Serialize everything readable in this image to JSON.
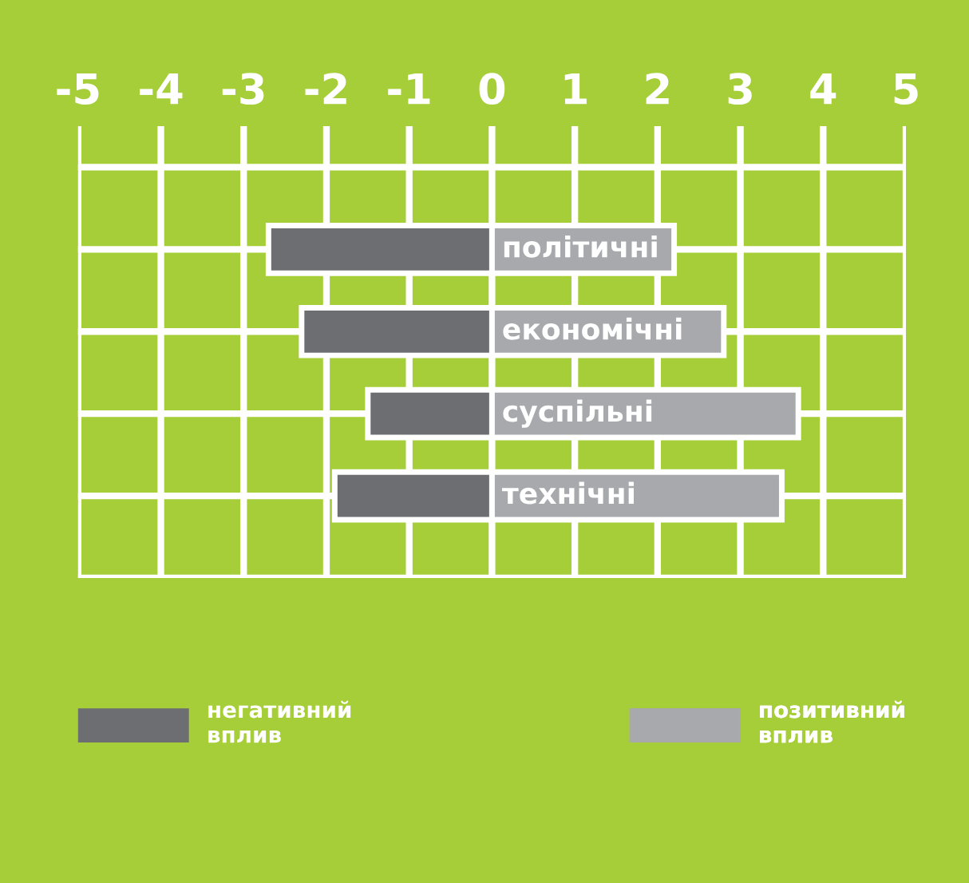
{
  "chart_data": {
    "type": "bar",
    "orientation": "horizontal",
    "stacked": true,
    "categories": [
      "політичні",
      "економічні",
      "суспільні",
      "технічні"
    ],
    "series": [
      {
        "name": "негативний\nвплив",
        "color": "#6d6e71",
        "values": [
          -2.7,
          -2.3,
          -1.5,
          -1.9
        ]
      },
      {
        "name": "позитивний\nвплив",
        "color": "#a7a9ac",
        "values": [
          2.2,
          2.8,
          3.7,
          3.5
        ]
      }
    ],
    "xlim": [
      -5,
      5
    ],
    "xticks": [
      -5,
      -4,
      -3,
      -2,
      -1,
      0,
      1,
      2,
      3,
      4,
      5
    ],
    "grid": true,
    "legend": "bottom"
  }
}
